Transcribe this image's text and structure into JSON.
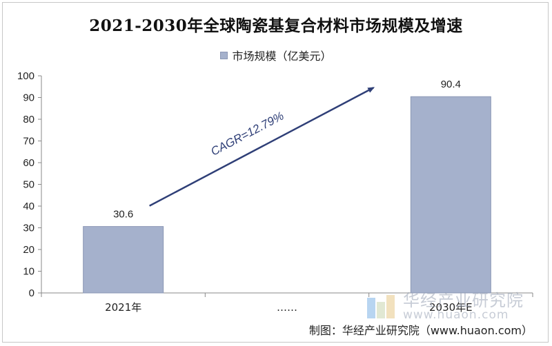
{
  "chart_data": {
    "type": "bar",
    "title": "2021-2030年全球陶瓷基复合材料市场规模及增速",
    "categories": [
      "2021年",
      "……",
      "2030年E"
    ],
    "series": [
      {
        "name": "市场规模（亿美元）",
        "values": [
          30.6,
          null,
          90.4
        ]
      }
    ],
    "data_labels": [
      "30.6",
      "",
      "90.4"
    ],
    "ylim": [
      0,
      100
    ],
    "yticks": [
      0,
      10,
      20,
      30,
      40,
      50,
      60,
      70,
      80,
      90,
      100
    ],
    "xlabel": "",
    "ylabel": "",
    "legend_position": "top",
    "grid": false,
    "annotation": {
      "text": "CAGR=12.79%",
      "type": "arrow",
      "from_category": "2021年",
      "to_category": "2030年E"
    },
    "colors": {
      "bar": "#a5b1cc",
      "bar_edge": "#8b97b5",
      "arrow": "#2f3f77"
    }
  },
  "watermark": {
    "name": "华经产业研究院",
    "url": "www.huaon.com"
  },
  "source": "制图：华经产业研究院（www.huaon.com）"
}
